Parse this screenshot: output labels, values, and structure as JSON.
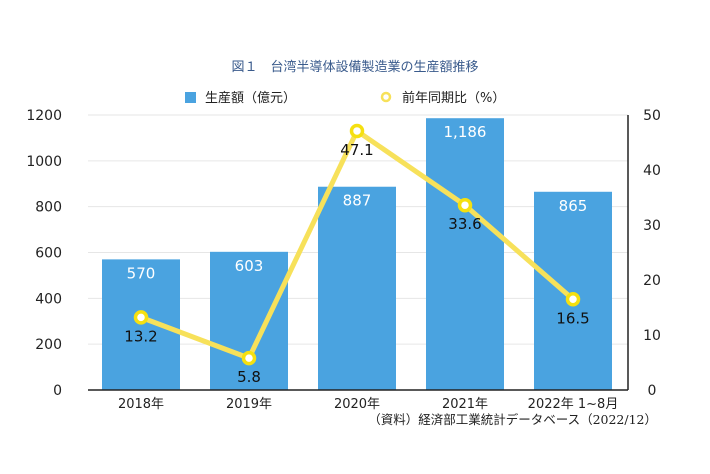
{
  "chart_data": {
    "type": "bar",
    "title": "図１　台湾半導体設備製造業の生産額推移",
    "categories": [
      "2018年",
      "2019年",
      "2020年",
      "2021年",
      "2022年 1~8月"
    ],
    "series": [
      {
        "name": "生産額（億元）",
        "type": "bar",
        "axis": "left",
        "color": "#4aa3e0",
        "values": [
          570,
          603,
          887,
          1186,
          865
        ],
        "labels": [
          "570",
          "603",
          "887",
          "1,186",
          "865"
        ]
      },
      {
        "name": "前年同期比（%）",
        "type": "line",
        "axis": "right",
        "color": "#f7e15a",
        "values": [
          13.2,
          5.8,
          47.1,
          33.6,
          16.5
        ],
        "labels": [
          "13.2",
          "5.8",
          "47.1",
          "33.6",
          "16.5"
        ]
      }
    ],
    "y_left": {
      "ylim": [
        0,
        1200
      ],
      "ticks": [
        "0",
        "200",
        "400",
        "600",
        "800",
        "1000",
        "1200"
      ]
    },
    "y_right": {
      "ylim": [
        0,
        50
      ],
      "ticks": [
        "0",
        "10",
        "20",
        "30",
        "40",
        "50"
      ]
    },
    "legend": "top",
    "grid": true,
    "source": "（資料）経済部工業統計データベース（2022/12）"
  }
}
